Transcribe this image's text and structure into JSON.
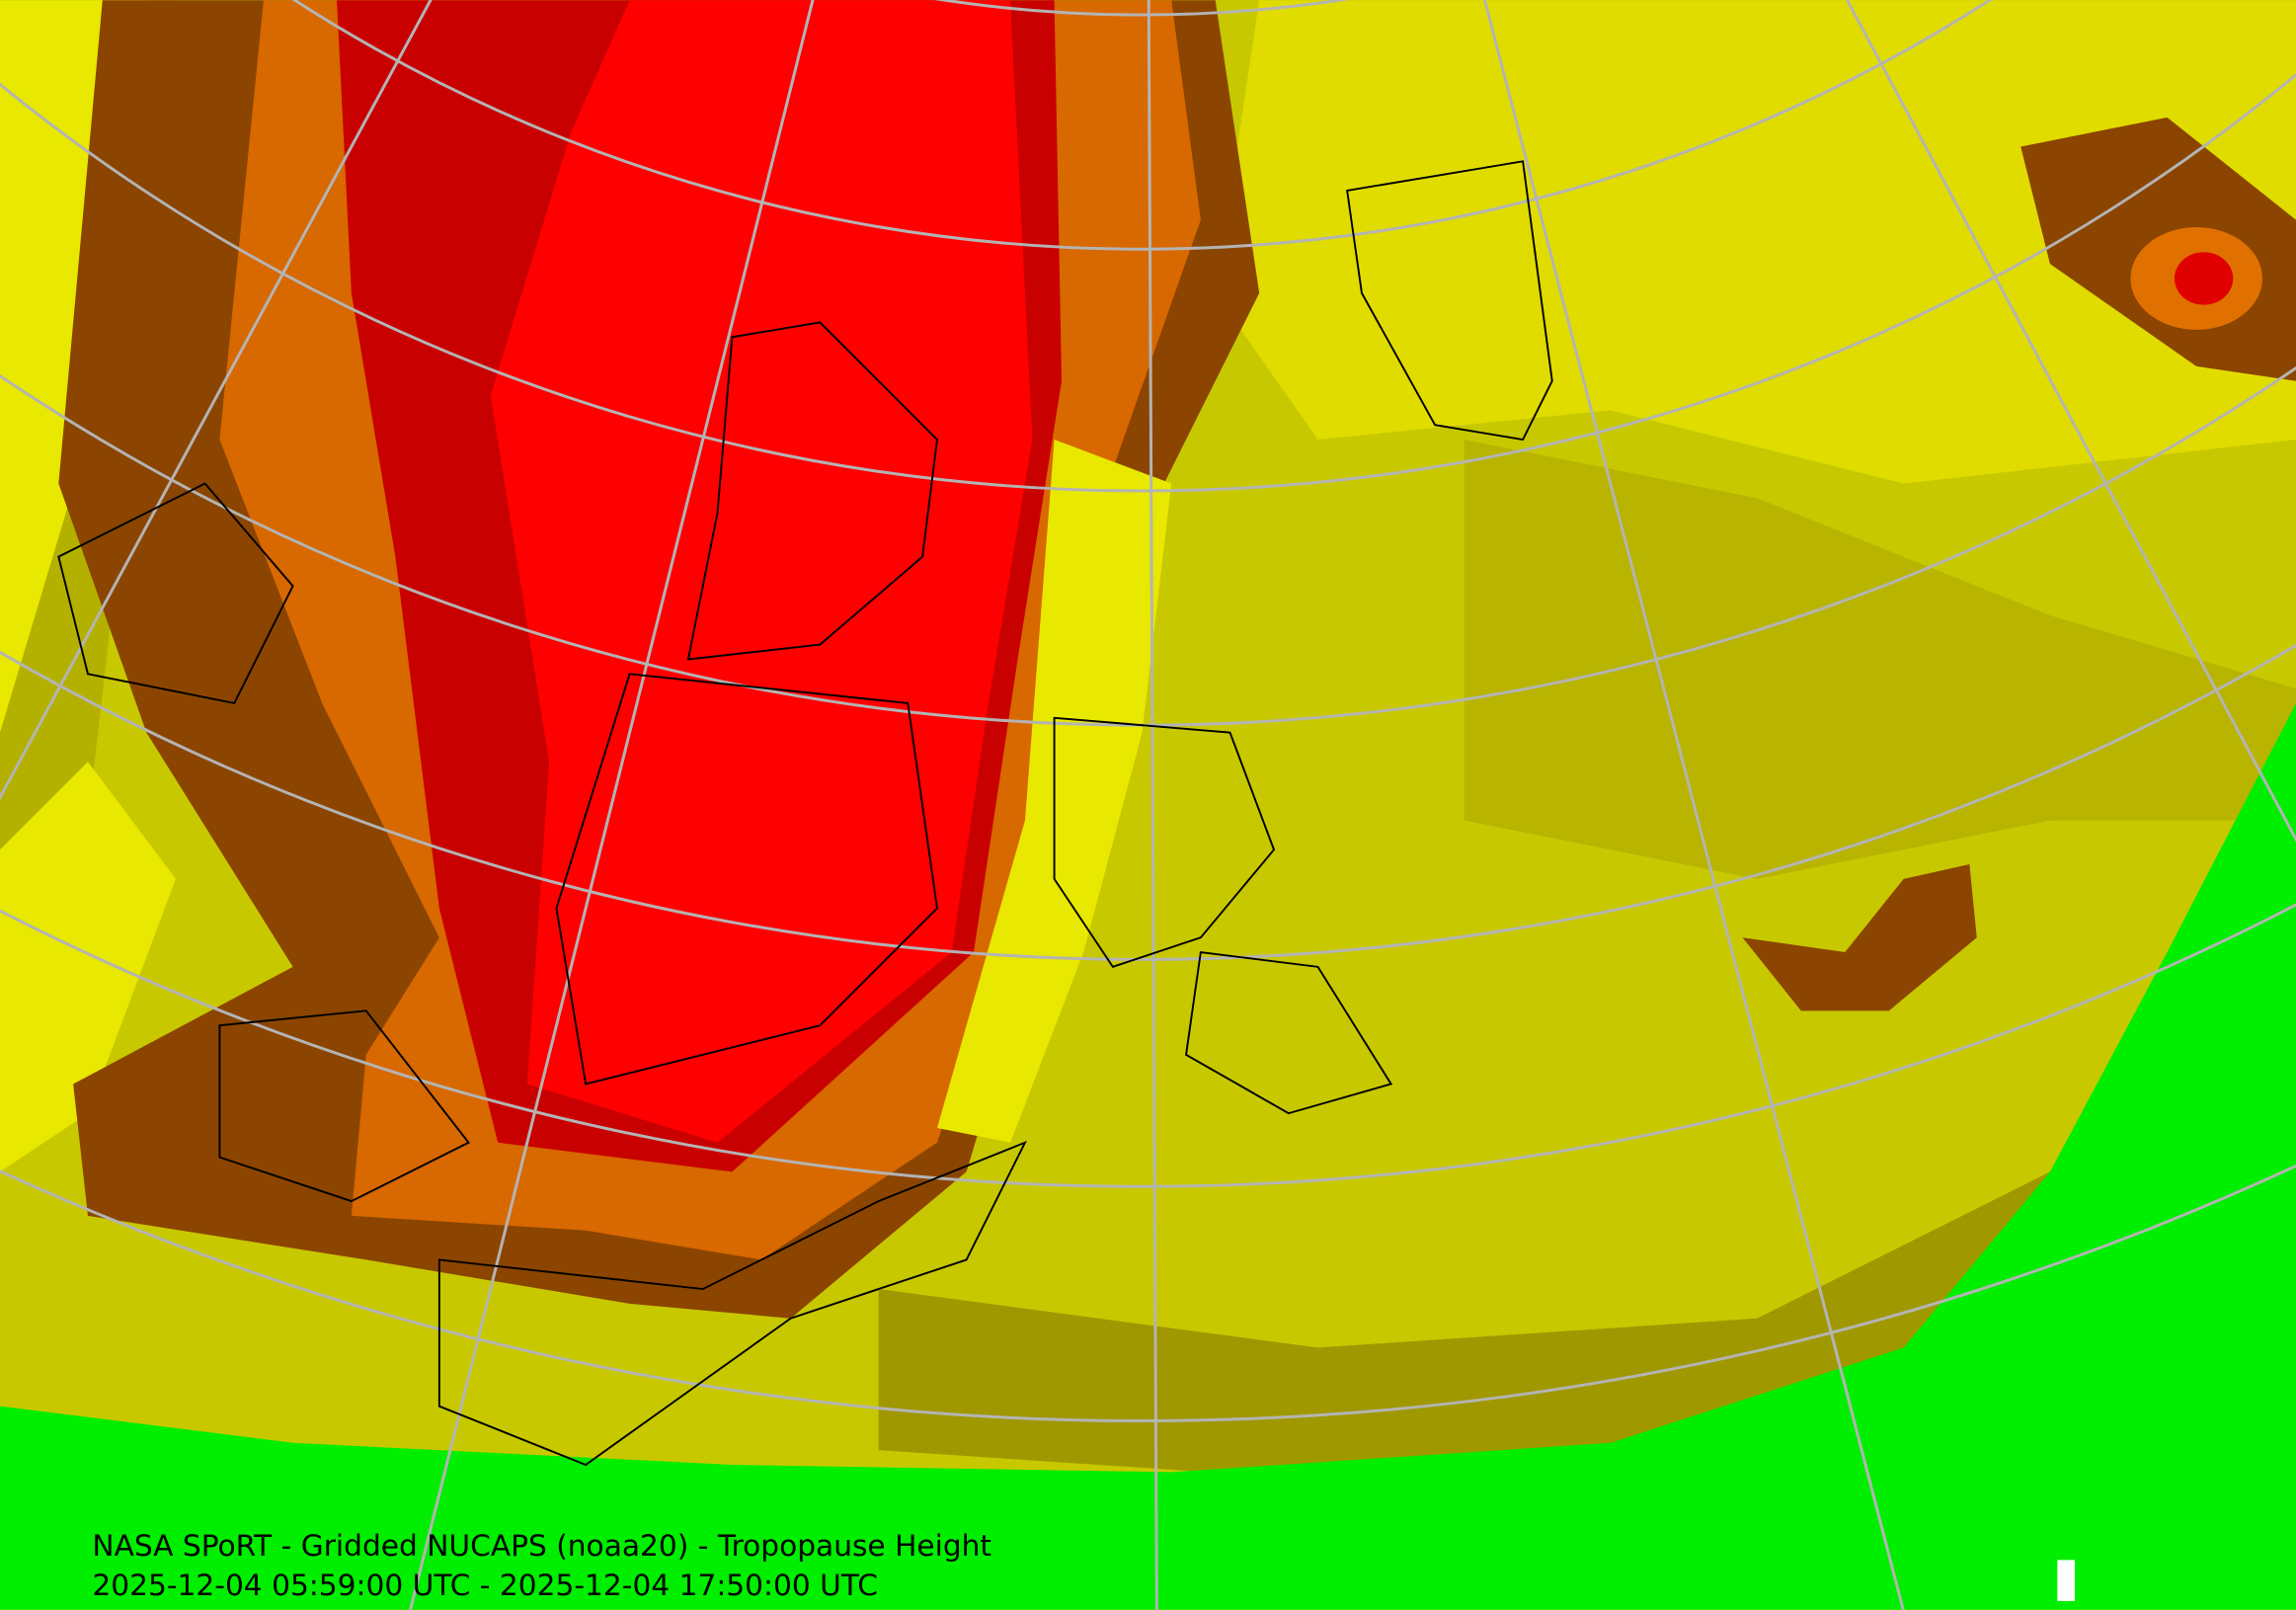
{
  "header": {
    "title": "NASA SPoRT - Gridded NUCAPS (noaa20) - Tropopause Height",
    "subtitle": "2025-12-04 05:59:00 UTC - 2025-12-04 17:50:00 UTC"
  }
}
